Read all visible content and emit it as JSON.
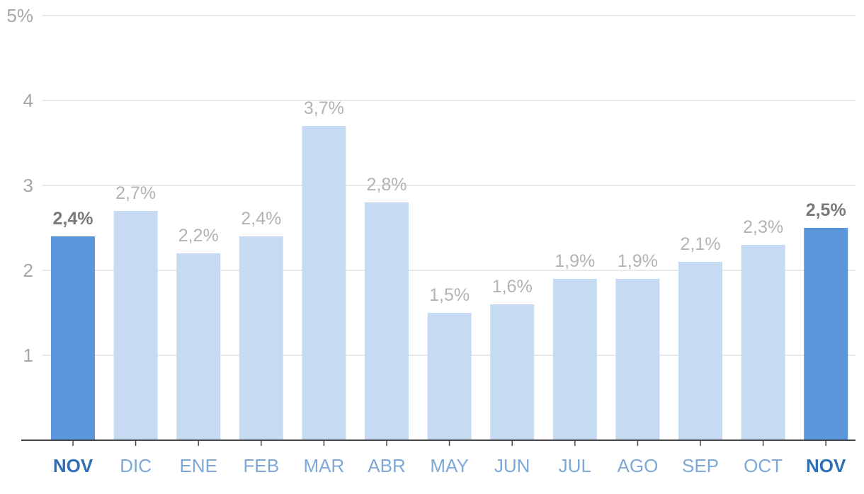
{
  "chart_data": {
    "type": "bar",
    "title": "",
    "xlabel": "",
    "ylabel": "",
    "categories": [
      "NOV",
      "DIC",
      "ENE",
      "FEB",
      "MAR",
      "ABR",
      "MAY",
      "JUN",
      "JUL",
      "AGO",
      "SEP",
      "OCT",
      "NOV"
    ],
    "values": [
      2.4,
      2.7,
      2.2,
      2.4,
      3.7,
      2.8,
      1.5,
      1.6,
      1.9,
      1.9,
      2.1,
      2.3,
      2.5
    ],
    "value_labels": [
      "2,4%",
      "2,7%",
      "2,2%",
      "2,4%",
      "3,7%",
      "2,8%",
      "1,5%",
      "1,6%",
      "1,9%",
      "1,9%",
      "2,1%",
      "2,3%",
      "2,5%"
    ],
    "highlighted": [
      true,
      false,
      false,
      false,
      false,
      false,
      false,
      false,
      false,
      false,
      false,
      false,
      true
    ],
    "ylim": [
      0,
      5
    ],
    "yticks": [
      1,
      2,
      3,
      4,
      5
    ],
    "ytick_labels": [
      "1",
      "2",
      "3",
      "4",
      "5%"
    ],
    "grid": true,
    "colors": {
      "bar_highlight": "#5b96da",
      "bar_normal": "#c6daf2",
      "label_highlight": "#7a7a7a",
      "label_normal": "#b3b3b3",
      "cat_highlight": "#2f6fb6",
      "cat_normal": "#7ea8d8",
      "grid": "#dcdcdc",
      "axis": "#444444",
      "tick_label": "#a6a6a6"
    }
  }
}
